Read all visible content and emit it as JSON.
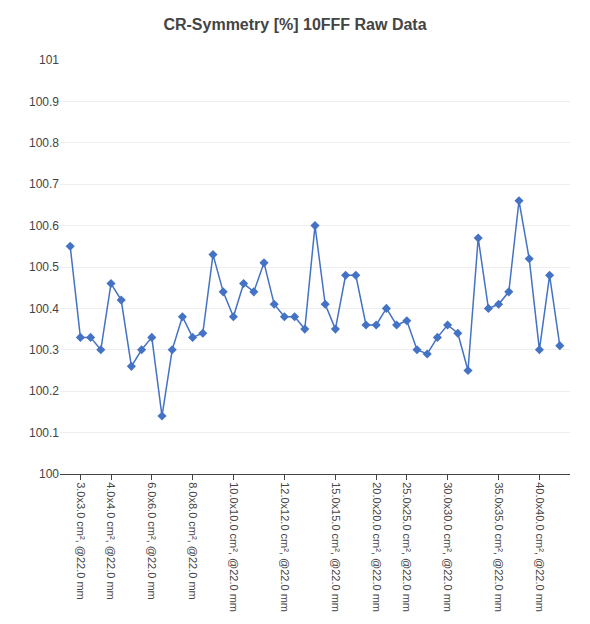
{
  "chart_data": {
    "type": "line",
    "title": "CR-Symmetry [%] 10FFF Raw Data",
    "categories": [
      null,
      "3.0x3.0 cm², @22.0 mm",
      null,
      null,
      "4.0x4.0 cm², @22.0 mm",
      null,
      null,
      null,
      "6.0x6.0 cm², @22.0 mm",
      null,
      null,
      null,
      "8.0x8.0 cm², @22.0 mm",
      null,
      null,
      null,
      "10.0x10.0 cm², @22.0 mm",
      null,
      null,
      null,
      null,
      "12.0x12.0 cm², @22.0 mm",
      null,
      null,
      null,
      null,
      "15.0x15.0 cm², @22.0 mm",
      null,
      null,
      null,
      "20.0x20.0 cm², @22.0 mm",
      null,
      null,
      "25.0x25.0 cm², @22.0 mm",
      null,
      null,
      null,
      "30.0x30.0 cm², @22.0 mm",
      null,
      null,
      null,
      null,
      "35.0x35.0 cm², @22.0 mm",
      null,
      null,
      null,
      "40.0x40.0 cm², @22.0 mm",
      null,
      null
    ],
    "values": [
      100.55,
      100.33,
      100.33,
      100.3,
      100.46,
      100.42,
      100.26,
      100.3,
      100.33,
      100.14,
      100.3,
      100.38,
      100.33,
      100.34,
      100.53,
      100.44,
      100.38,
      100.46,
      100.44,
      100.51,
      100.41,
      100.38,
      100.38,
      100.35,
      100.6,
      100.41,
      100.35,
      100.48,
      100.48,
      100.36,
      100.36,
      100.4,
      100.36,
      100.37,
      100.3,
      100.29,
      100.33,
      100.36,
      100.34,
      100.25,
      100.57,
      100.4,
      100.41,
      100.44,
      100.66,
      100.52,
      100.3,
      100.48,
      100.31
    ],
    "color": "#4472C4",
    "marker": "diamond",
    "ylim": [
      100.0,
      101.0
    ],
    "yticks": [
      100,
      100.1,
      100.2,
      100.3,
      100.4,
      100.5,
      100.6,
      100.7,
      100.8,
      100.9,
      101
    ],
    "grid": true
  }
}
